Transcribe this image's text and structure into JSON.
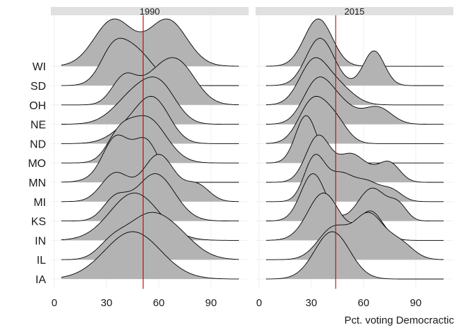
{
  "chart_data": {
    "type": "ridgeline-density",
    "xlabel": "Pct. voting Democractic",
    "ylabel": "",
    "xlim": [
      0,
      108
    ],
    "xticks": [
      "0",
      "30",
      "60",
      "90"
    ],
    "xtick_values": [
      0,
      30,
      60,
      90
    ],
    "categories": [
      "IA",
      "IL",
      "IN",
      "KS",
      "MI",
      "MN",
      "MO",
      "ND",
      "NE",
      "OH",
      "SD",
      "WI"
    ],
    "fill_color": "#b3b3b3",
    "line_color": "#000000",
    "reference_color": "#cc0000",
    "strip_color": "#e0e0e0",
    "grid_color": "#ebebeb",
    "panels": [
      {
        "strip": "1990",
        "reference_x": 51,
        "series": [
          {
            "state": "IA",
            "components": [
              [
                45,
                16,
                1.0
              ]
            ]
          },
          {
            "state": "IL",
            "components": [
              [
                33,
                8,
                0.3
              ],
              [
                50,
                11,
                0.55
              ],
              [
                66,
                13,
                0.6
              ]
            ]
          },
          {
            "state": "IN",
            "components": [
              [
                46,
                14,
                1.0
              ]
            ]
          },
          {
            "state": "KS",
            "components": [
              [
                35,
                7,
                0.45
              ],
              [
                58,
                11,
                1.0
              ]
            ]
          },
          {
            "state": "MI",
            "components": [
              [
                35,
                8,
                0.6
              ],
              [
                60,
                9,
                1.0
              ],
              [
                82,
                7,
                0.35
              ]
            ]
          },
          {
            "state": "MN",
            "components": [
              [
                35,
                7,
                0.6
              ],
              [
                53,
                7,
                0.65
              ],
              [
                40,
                12,
                0.3
              ]
            ]
          },
          {
            "state": "MO",
            "components": [
              [
                37,
                7,
                0.35
              ],
              [
                53,
                11,
                0.75
              ]
            ]
          },
          {
            "state": "ND",
            "components": [
              [
                46,
                11,
                0.45
              ],
              [
                58,
                9,
                0.8
              ]
            ]
          },
          {
            "state": "NE",
            "components": [
              [
                48,
                12,
                0.7
              ],
              [
                62,
                9,
                0.55
              ]
            ]
          },
          {
            "state": "OH",
            "components": [
              [
                40,
                7,
                0.4
              ],
              [
                72,
                10,
                0.55
              ],
              [
                58,
                10,
                0.35
              ]
            ]
          },
          {
            "state": "SD",
            "components": [
              [
                33,
                7,
                0.45
              ],
              [
                45,
                11,
                0.75
              ]
            ]
          },
          {
            "state": "WI",
            "components": [
              [
                34,
                11,
                0.95
              ],
              [
                65,
                11,
                0.95
              ]
            ]
          }
        ]
      },
      {
        "strip": "2015",
        "reference_x": 44,
        "series": [
          {
            "state": "IA",
            "components": [
              [
                42,
                10,
                1.0
              ]
            ]
          },
          {
            "state": "IL",
            "components": [
              [
                43,
                9,
                0.45
              ],
              [
                63,
                8,
                0.6
              ],
              [
                80,
                8,
                0.25
              ]
            ]
          },
          {
            "state": "IN",
            "components": [
              [
                37,
                9,
                0.9
              ],
              [
                64,
                7,
                0.55
              ]
            ]
          },
          {
            "state": "KS",
            "components": [
              [
                31,
                7,
                0.65
              ],
              [
                65,
                8,
                0.45
              ],
              [
                80,
                5,
                0.2
              ]
            ]
          },
          {
            "state": "MI",
            "components": [
              [
                32,
                6,
                0.6
              ],
              [
                47,
                7,
                0.35
              ],
              [
                62,
                7,
                0.25
              ],
              [
                76,
                6,
                0.15
              ]
            ]
          },
          {
            "state": "MN",
            "components": [
              [
                34,
                7,
                0.75
              ],
              [
                52,
                7,
                0.4
              ],
              [
                75,
                6,
                0.3
              ],
              [
                63,
                7,
                0.15
              ]
            ]
          },
          {
            "state": "MO",
            "components": [
              [
                27,
                6,
                1.0
              ]
            ]
          },
          {
            "state": "ND",
            "components": [
              [
                31,
                8,
                0.65
              ],
              [
                44,
                7,
                0.3
              ]
            ]
          },
          {
            "state": "NE",
            "components": [
              [
                33,
                8,
                0.7
              ],
              [
                46,
                9,
                0.35
              ],
              [
                68,
                8,
                0.3
              ]
            ]
          },
          {
            "state": "OH",
            "components": [
              [
                31,
                8,
                0.8
              ],
              [
                45,
                9,
                0.35
              ]
            ]
          },
          {
            "state": "SD",
            "components": [
              [
                35,
                8,
                0.75
              ],
              [
                66,
                6,
                0.55
              ]
            ]
          },
          {
            "state": "WI",
            "components": [
              [
                34,
                8,
                0.75
              ]
            ]
          }
        ]
      }
    ]
  }
}
